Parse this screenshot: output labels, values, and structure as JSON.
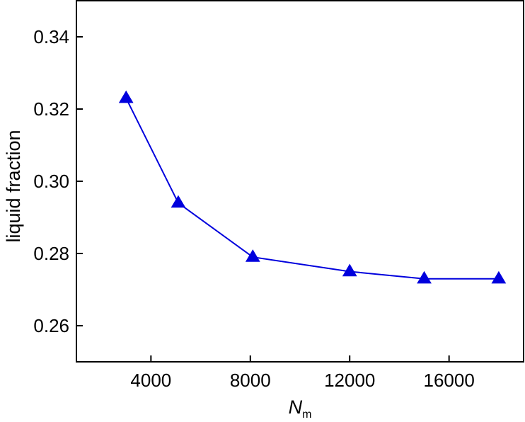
{
  "chart_data": {
    "type": "line",
    "xlabel_main": "N",
    "xlabel_sub": "m",
    "ylabel": "liquid fraction",
    "xlim": [
      1000,
      19000
    ],
    "ylim": [
      0.25,
      0.35
    ],
    "xticks": [
      4000,
      8000,
      12000,
      16000
    ],
    "xtick_labels": [
      "4000",
      "8000",
      "12000",
      "16000"
    ],
    "yticks": [
      0.26,
      0.28,
      0.3,
      0.32,
      0.34
    ],
    "ytick_labels": [
      "0.26",
      "0.28",
      "0.30",
      "0.32",
      "0.34"
    ],
    "grid": false,
    "series": [
      {
        "color": "#0000dd",
        "marker": "triangle-up",
        "x": [
          3000,
          5100,
          8100,
          12000,
          15000,
          18000
        ],
        "y": [
          0.323,
          0.294,
          0.279,
          0.275,
          0.273,
          0.273
        ]
      }
    ]
  }
}
